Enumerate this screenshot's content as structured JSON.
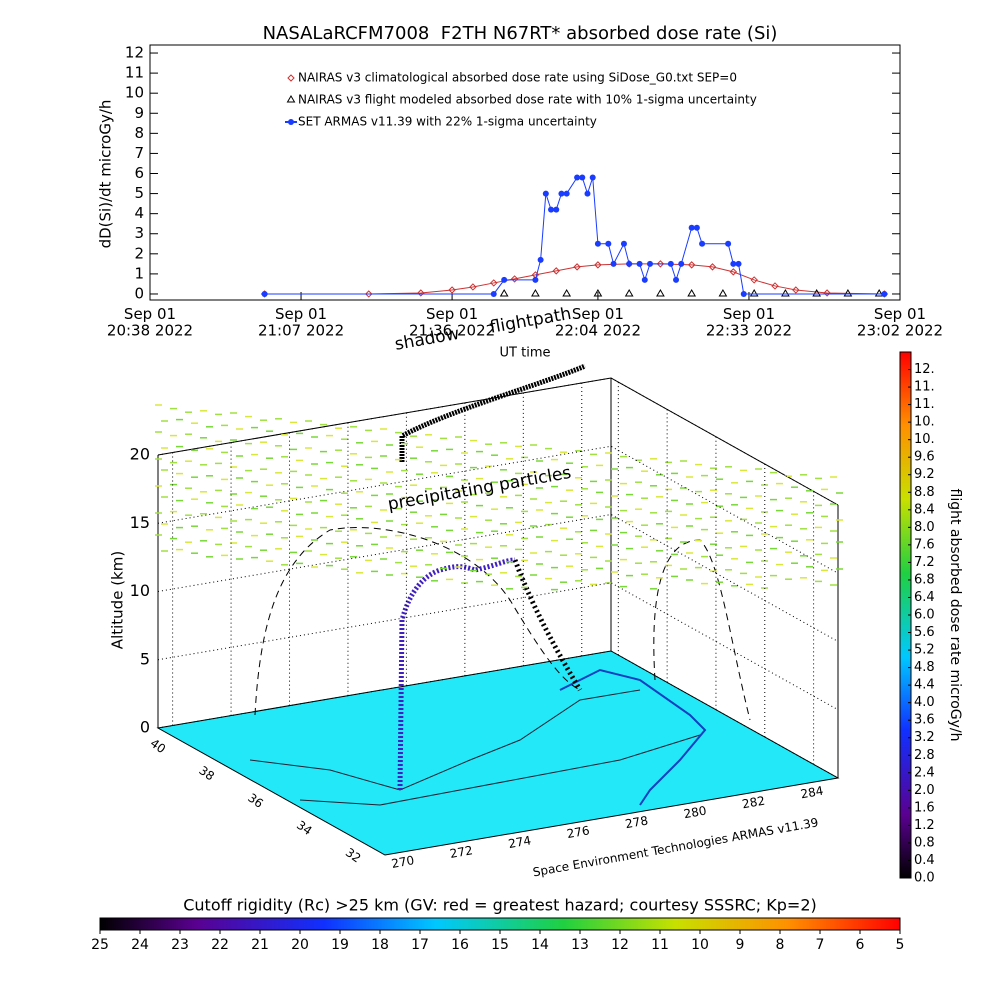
{
  "chart_data": [
    {
      "type": "line",
      "title": "NASALaRCFM7008  F2TH N67RT* absorbed dose rate (Si)",
      "ylabel": "dD(Si)/dt microGy/h",
      "xlabel": "UT time",
      "xlim": [
        "2022-09-01T20:38",
        "2022-09-01T23:02"
      ],
      "xticks": [
        {
          "value": "2022-09-01T20:38",
          "label": "Sep 01\n20:38 2022"
        },
        {
          "value": "2022-09-01T21:07",
          "label": "Sep 01\n21:07 2022"
        },
        {
          "value": "2022-09-01T21:36",
          "label": "Sep 01\n21:36 2022"
        },
        {
          "value": "2022-09-01T22:04",
          "label": "Sep 01\n22:04 2022"
        },
        {
          "value": "2022-09-01T22:33",
          "label": "Sep 01\n22:33 2022"
        },
        {
          "value": "2022-09-01T23:02",
          "label": "Sep 01\n23:02 2022"
        }
      ],
      "ylim": [
        -0.3,
        12.4
      ],
      "yticks": [
        0,
        1,
        2,
        3,
        4,
        5,
        6,
        7,
        8,
        9,
        10,
        11,
        12
      ],
      "legend": "upper left",
      "series": [
        {
          "name": "NAIRAS v3 climatological absorbed dose rate using SiDose_G0.txt SEP=0",
          "color": "#cc3333",
          "marker": "diamond",
          "line": true,
          "x": [
            "2022-09-01T21:00",
            "2022-09-01T21:20",
            "2022-09-01T21:30",
            "2022-09-01T21:36",
            "2022-09-01T21:40",
            "2022-09-01T21:44",
            "2022-09-01T21:48",
            "2022-09-01T21:52",
            "2022-09-01T21:56",
            "2022-09-01T22:00",
            "2022-09-01T22:04",
            "2022-09-01T22:10",
            "2022-09-01T22:16",
            "2022-09-01T22:22",
            "2022-09-01T22:26",
            "2022-09-01T22:30",
            "2022-09-01T22:34",
            "2022-09-01T22:38",
            "2022-09-01T22:42",
            "2022-09-01T22:48",
            "2022-09-01T22:59"
          ],
          "values": [
            0,
            0,
            0.05,
            0.2,
            0.35,
            0.55,
            0.75,
            0.95,
            1.15,
            1.35,
            1.45,
            1.5,
            1.5,
            1.45,
            1.35,
            1.1,
            0.7,
            0.4,
            0.2,
            0.05,
            0
          ]
        },
        {
          "name": "NAIRAS v3 flight modeled absorbed dose rate with 10% 1-sigma uncertainty",
          "color": "#000000",
          "marker": "triangle",
          "line": false,
          "x": [
            "2022-09-01T21:46",
            "2022-09-01T21:52",
            "2022-09-01T21:58",
            "2022-09-01T22:04",
            "2022-09-01T22:10",
            "2022-09-01T22:16",
            "2022-09-01T22:22",
            "2022-09-01T22:28",
            "2022-09-01T22:34",
            "2022-09-01T22:40",
            "2022-09-01T22:46",
            "2022-09-01T22:52",
            "2022-09-01T22:58"
          ],
          "values": [
            0,
            0,
            0,
            0,
            0,
            0,
            0,
            0,
            0,
            0,
            0,
            0,
            0
          ]
        },
        {
          "name": "SET ARMAS v11.39 with 22% 1-sigma uncertainty",
          "color": "#1a3cff",
          "marker": "circle",
          "line": true,
          "x": [
            "2022-09-01T21:00",
            "2022-09-01T21:44",
            "2022-09-01T21:46",
            "2022-09-01T21:52",
            "2022-09-01T21:53",
            "2022-09-01T21:54",
            "2022-09-01T21:55",
            "2022-09-01T21:56",
            "2022-09-01T21:57",
            "2022-09-01T21:58",
            "2022-09-01T22:00",
            "2022-09-01T22:01",
            "2022-09-01T22:02",
            "2022-09-01T22:03",
            "2022-09-01T22:04",
            "2022-09-01T22:06",
            "2022-09-01T22:07",
            "2022-09-01T22:09",
            "2022-09-01T22:10",
            "2022-09-01T22:12",
            "2022-09-01T22:13",
            "2022-09-01T22:14",
            "2022-09-01T22:18",
            "2022-09-01T22:19",
            "2022-09-01T22:20",
            "2022-09-01T22:22",
            "2022-09-01T22:23",
            "2022-09-01T22:24",
            "2022-09-01T22:29",
            "2022-09-01T22:30",
            "2022-09-01T22:31",
            "2022-09-01T22:32",
            "2022-09-01T22:59"
          ],
          "values": [
            0,
            0,
            0.7,
            0.7,
            1.7,
            5.0,
            4.2,
            4.2,
            5.0,
            5.0,
            5.8,
            5.8,
            5.0,
            5.8,
            2.5,
            2.5,
            1.5,
            2.5,
            1.5,
            1.5,
            0.7,
            1.5,
            1.5,
            0.7,
            1.5,
            3.3,
            3.3,
            2.5,
            2.5,
            1.5,
            1.5,
            0,
            0
          ]
        }
      ]
    },
    {
      "type": "surface3d",
      "zlabel": "Altitude (km)",
      "zlim": [
        0,
        20
      ],
      "zticks": [
        0,
        5,
        10,
        15,
        20
      ],
      "ylim": [
        31,
        40.3
      ],
      "yticks": [
        32,
        34,
        36,
        38,
        40
      ],
      "xlim": [
        269.5,
        285
      ],
      "xticks": [
        270,
        272,
        274,
        276,
        278,
        280,
        282,
        284
      ],
      "annotations": [
        "shadow",
        "flightpath",
        "precipitating particles"
      ],
      "credit": "Space Environment Technologies ARMAS v11.39"
    },
    {
      "type": "colorbar",
      "orientation": "vertical",
      "label": "flight absorbed dose rate microGy/h",
      "clim": [
        0,
        12
      ],
      "ticks": [
        {
          "value": 0,
          "label": "0.0"
        },
        0.4,
        0.8,
        1.2,
        1.6,
        {
          "value": 2,
          "label": "2.0"
        },
        2.4,
        2.8,
        3.2,
        3.6,
        {
          "value": 4,
          "label": "4.0"
        },
        4.4,
        4.8,
        5.2,
        5.6,
        {
          "value": 6,
          "label": "6.0"
        },
        6.4,
        6.8,
        7.2,
        7.6,
        {
          "value": 8,
          "label": "8.0"
        },
        8.4,
        8.8,
        9.2,
        9.6,
        {
          "value": 10,
          "label": "10."
        },
        {
          "value": 10.4,
          "label": "10."
        },
        {
          "value": 10.8,
          "label": "11."
        },
        {
          "value": 11.2,
          "label": "11."
        },
        {
          "value": 11.6,
          "label": "12."
        }
      ]
    },
    {
      "type": "colorbar",
      "orientation": "horizontal",
      "title": "Cutoff rigidity (Rc) >25 km (GV: red = greatest hazard; courtesy SSSRC; Kp=2)",
      "clim": [
        25,
        5
      ],
      "ticks": [
        25,
        24,
        23,
        22,
        21,
        20,
        19,
        18,
        17,
        16,
        15,
        14,
        13,
        12,
        11,
        10,
        9,
        8,
        7,
        6,
        5
      ]
    }
  ]
}
